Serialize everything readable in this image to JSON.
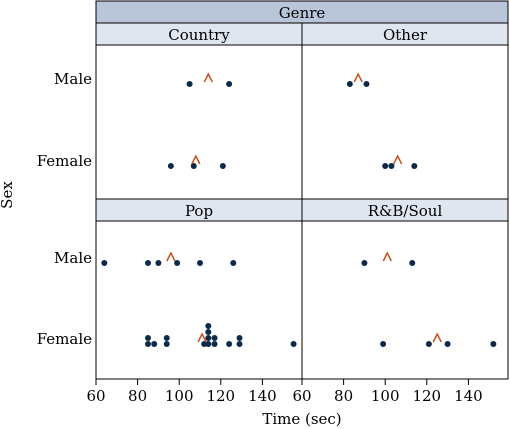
{
  "chart_data": {
    "type": "scatter",
    "title": "",
    "outer_strip": "Genre",
    "xlabel": "Time (sec)",
    "ylabel": "Sex",
    "xlim": [
      60,
      160
    ],
    "x_ticks": [
      60,
      80,
      100,
      120,
      140
    ],
    "y_categories": [
      "Male",
      "Female"
    ],
    "colors": {
      "point": "#0b2a4a",
      "mean_marker": "#c8501e",
      "strip_outer": "#b9c6da",
      "strip_inner": "#dfe6f0"
    },
    "panels": [
      {
        "label": "Country",
        "points": {
          "Male": [
            105,
            124
          ],
          "Female": [
            96,
            107,
            121
          ]
        },
        "means": {
          "Male": 114,
          "Female": 108
        }
      },
      {
        "label": "Other",
        "points": {
          "Male": [
            83,
            91
          ],
          "Female": [
            100,
            103,
            114
          ]
        },
        "means": {
          "Male": 87,
          "Female": 106
        }
      },
      {
        "label": "Pop",
        "points": {
          "Male": [
            64,
            85,
            90,
            99,
            110,
            126
          ],
          "Female": [
            85,
            85,
            88,
            94,
            94,
            112,
            114,
            114,
            114,
            114,
            117,
            117,
            124,
            129,
            129,
            155
          ]
        },
        "means": {
          "Male": 96,
          "Female": 111
        }
      },
      {
        "label": "R&B/Soul",
        "points": {
          "Male": [
            90,
            113
          ],
          "Female": [
            99,
            121,
            130,
            152
          ]
        },
        "means": {
          "Male": 101,
          "Female": 125
        }
      }
    ]
  }
}
